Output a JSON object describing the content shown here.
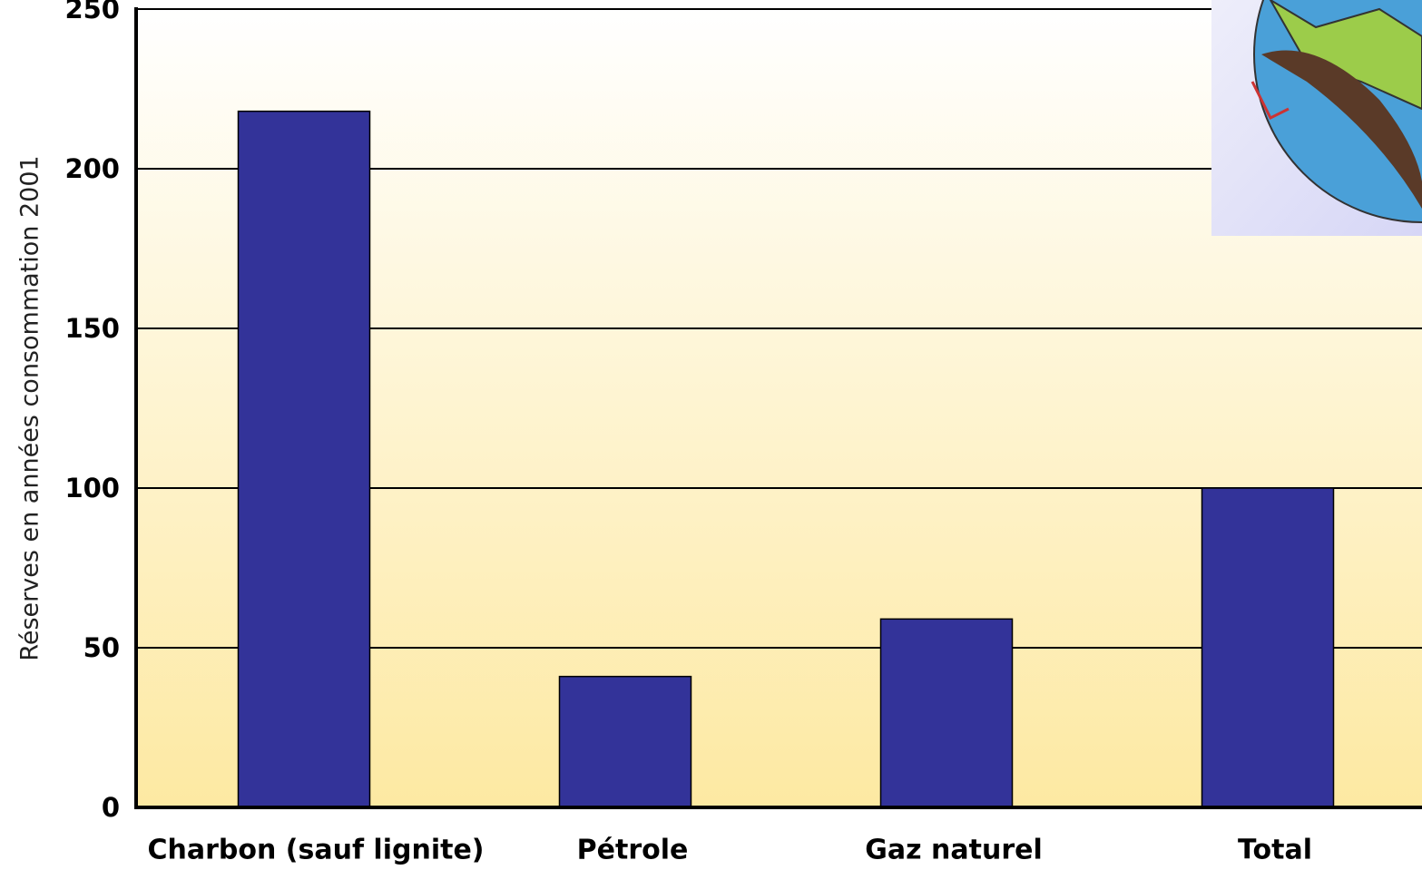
{
  "chart_data": {
    "type": "bar",
    "y_label": "Réserves en années consommation 2001",
    "categories": [
      "Charbon (sauf lignite)",
      "Pétrole",
      "Gaz naturel",
      "Total"
    ],
    "values": [
      218,
      41,
      59,
      100
    ],
    "color": "#333399",
    "ylim": [
      0,
      250
    ],
    "yticks": [
      0,
      50,
      100,
      150,
      200,
      250
    ],
    "grid": true
  }
}
